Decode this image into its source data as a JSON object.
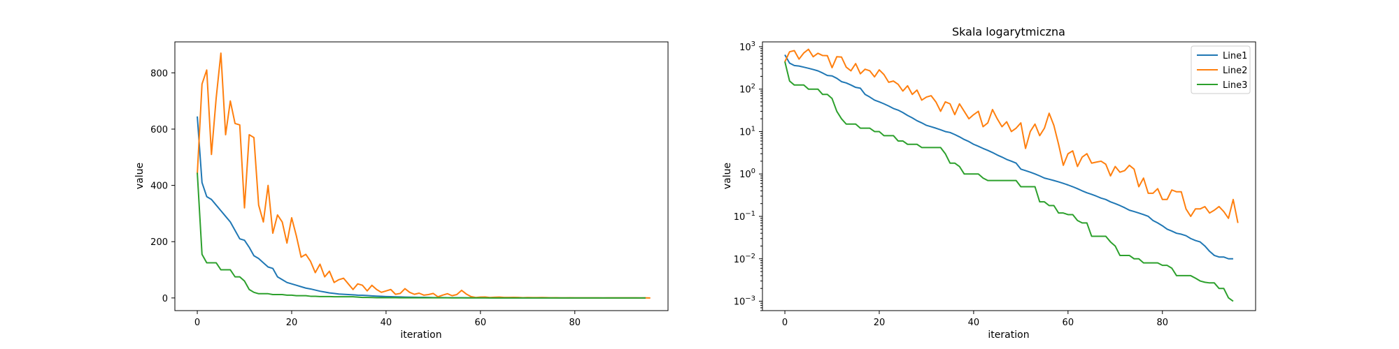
{
  "chart_data": [
    {
      "type": "line",
      "title": "",
      "xlabel": "iteration",
      "ylabel": "value",
      "xlim": [
        -4.75,
        99.75
      ],
      "ylim": [
        -45,
        910
      ],
      "yscale": "linear",
      "xticks": [
        0,
        20,
        40,
        60,
        80
      ],
      "yticks": [
        0,
        200,
        400,
        600,
        800
      ],
      "colors": [
        "#1f77b4",
        "#ff7f0e",
        "#2ca02c"
      ],
      "series": [
        {
          "values": [
            645,
            410,
            360,
            350,
            330,
            310,
            290,
            270,
            240,
            210,
            205,
            180,
            150,
            140,
            125,
            110,
            105,
            75,
            65,
            55,
            50,
            45,
            40,
            35,
            32,
            28,
            24,
            21,
            18,
            16,
            14,
            13,
            12,
            11,
            10,
            9.5,
            8.5,
            7.5,
            6.5,
            5.8,
            5.0,
            4.5,
            4.0,
            3.6,
            3.2,
            2.8,
            2.5,
            2.2,
            2.0,
            1.8,
            1.3,
            1.2,
            1.1,
            1.0,
            0.9,
            0.8,
            0.75,
            0.7,
            0.65,
            0.6,
            0.55,
            0.5,
            0.45,
            0.4,
            0.36,
            0.33,
            0.3,
            0.27,
            0.25,
            0.22,
            0.2,
            0.18,
            0.16,
            0.14,
            0.13,
            0.12,
            0.11,
            0.1,
            0.08,
            0.07,
            0.06,
            0.05,
            0.045,
            0.04,
            0.038,
            0.035,
            0.03,
            0.027,
            0.025,
            0.02,
            0.015,
            0.012,
            0.011,
            0.011,
            0.01,
            0.01
          ]
        },
        {
          "values": [
            440,
            760,
            810,
            510,
            710,
            870,
            580,
            700,
            620,
            615,
            320,
            580,
            570,
            330,
            270,
            400,
            230,
            295,
            270,
            195,
            285,
            220,
            145,
            155,
            130,
            90,
            120,
            75,
            95,
            55,
            65,
            70,
            50,
            30,
            50,
            45,
            25,
            45,
            30,
            20,
            25,
            30,
            13,
            16,
            33,
            20,
            13,
            17,
            10,
            12,
            16,
            4,
            10,
            15,
            8,
            12,
            27,
            14,
            5,
            1.6,
            3,
            3.5,
            1.5,
            2.5,
            3,
            1.8,
            1.9,
            2.0,
            1.7,
            0.9,
            1.5,
            1.1,
            1.2,
            1.6,
            1.3,
            0.5,
            0.8,
            0.35,
            0.35,
            0.45,
            0.25,
            0.25,
            0.42,
            0.38,
            0.38,
            0.15,
            0.1,
            0.15,
            0.15,
            0.17,
            0.12,
            0.14,
            0.17,
            0.13,
            0.09,
            0.25,
            0.07
          ]
        },
        {
          "values": [
            445,
            155,
            125,
            125,
            125,
            100,
            100,
            100,
            75,
            75,
            60,
            30,
            20,
            15,
            15,
            15,
            12,
            12,
            12,
            10,
            10,
            8,
            8,
            8,
            6,
            6,
            5,
            5,
            5,
            4.2,
            4.2,
            4.2,
            4.2,
            4.2,
            3,
            1.8,
            1.8,
            1.5,
            1.0,
            1.0,
            1.0,
            1.0,
            0.8,
            0.7,
            0.7,
            0.7,
            0.7,
            0.7,
            0.7,
            0.7,
            0.5,
            0.5,
            0.5,
            0.5,
            0.22,
            0.22,
            0.18,
            0.18,
            0.12,
            0.12,
            0.11,
            0.11,
            0.08,
            0.07,
            0.07,
            0.034,
            0.034,
            0.034,
            0.034,
            0.025,
            0.02,
            0.012,
            0.012,
            0.012,
            0.01,
            0.01,
            0.008,
            0.008,
            0.008,
            0.008,
            0.007,
            0.007,
            0.006,
            0.004,
            0.004,
            0.004,
            0.004,
            0.0035,
            0.003,
            0.0028,
            0.0027,
            0.0027,
            0.002,
            0.002,
            0.0012,
            0.001
          ]
        }
      ]
    },
    {
      "type": "line",
      "title": "Skala logarytmiczna",
      "xlabel": "iteration",
      "ylabel": "value",
      "xlim": [
        -4.75,
        99.75
      ],
      "ylim": [
        0.0006,
        1300
      ],
      "yscale": "log",
      "xticks": [
        0,
        20,
        40,
        60,
        80
      ],
      "yticks_exp": [
        -3,
        -2,
        -1,
        0,
        1,
        2,
        3
      ],
      "colors": [
        "#1f77b4",
        "#ff7f0e",
        "#2ca02c"
      ],
      "legend": {
        "location": "top-right",
        "entries": [
          "Line1",
          "Line2",
          "Line3"
        ]
      },
      "series_source": 0
    }
  ]
}
